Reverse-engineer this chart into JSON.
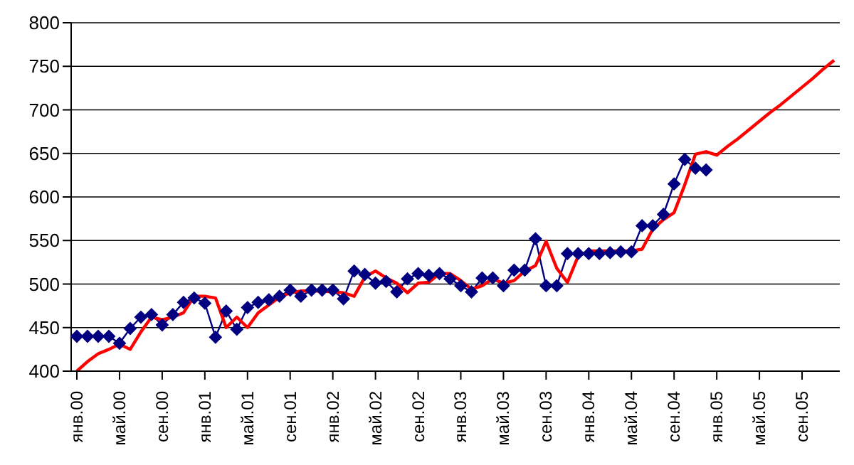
{
  "chart_data": {
    "type": "line",
    "categories": [
      "янв.00",
      null,
      null,
      null,
      "май.00",
      null,
      null,
      null,
      "сен.00",
      null,
      null,
      null,
      "янв.01",
      null,
      null,
      null,
      "май.01",
      null,
      null,
      null,
      "сен.01",
      null,
      null,
      null,
      "янв.02",
      null,
      null,
      null,
      "май.02",
      null,
      null,
      null,
      "сен.02",
      null,
      null,
      null,
      "янв.03",
      null,
      null,
      null,
      "май.03",
      null,
      null,
      null,
      "сен.03",
      null,
      null,
      null,
      "янв.04",
      null,
      null,
      null,
      "май.04",
      null,
      null,
      null,
      "сен.04",
      null,
      null,
      null,
      "янв.05",
      null,
      null,
      null,
      "май.05",
      null,
      null,
      null,
      "сен.05",
      null,
      null,
      null
    ],
    "series": [
      {
        "color": "#000080",
        "marker": "diamond",
        "values": [
          440,
          440,
          440,
          440,
          432,
          449,
          462,
          465,
          453,
          465,
          479,
          484,
          478,
          439,
          469,
          448,
          473,
          479,
          482,
          486,
          493,
          486,
          493,
          493,
          493,
          483,
          515,
          511,
          501,
          503,
          491,
          506,
          512,
          510,
          512,
          506,
          498,
          491,
          507,
          507,
          498,
          516,
          516,
          552,
          498,
          498,
          535,
          535,
          535,
          535,
          536,
          537,
          537,
          567,
          567,
          580,
          615,
          643,
          633,
          631,
          null,
          null,
          null,
          null,
          null,
          null,
          null,
          null,
          null,
          null,
          null,
          null
        ]
      },
      {
        "color": "#ff0000",
        "marker": "none",
        "values": [
          400,
          411,
          420,
          425,
          431,
          425,
          445,
          462,
          459,
          462,
          467,
          486,
          486,
          484,
          450,
          462,
          450,
          467,
          476,
          485,
          490,
          492,
          492,
          492,
          491,
          490,
          486,
          508,
          515,
          507,
          501,
          490,
          501,
          502,
          512,
          512,
          504,
          494,
          498,
          506,
          501,
          504,
          515,
          521,
          549,
          518,
          502,
          532,
          538,
          538,
          538,
          538,
          538,
          540,
          563,
          574,
          582,
          614,
          649,
          652,
          648,
          658,
          667,
          677,
          687,
          697,
          706,
          716,
          726,
          736,
          747,
          757
        ]
      }
    ],
    "ylim": [
      400,
      800
    ],
    "yticks": [
      400,
      450,
      500,
      550,
      600,
      650,
      700,
      750,
      800
    ],
    "grid": "y",
    "legend": false,
    "line_style": "solid"
  }
}
